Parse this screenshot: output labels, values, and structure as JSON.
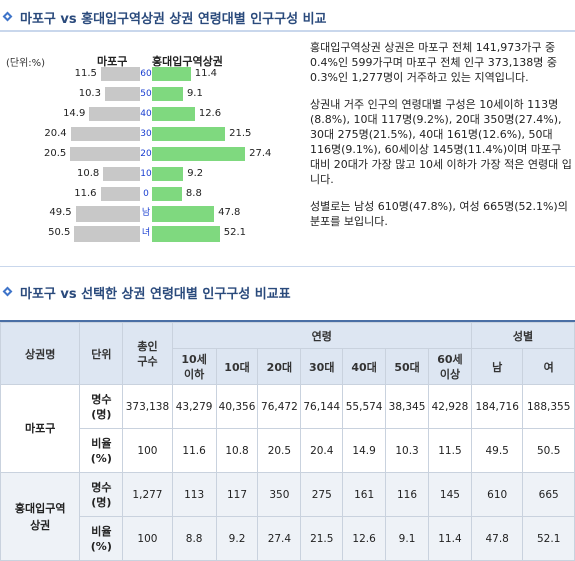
{
  "section1_title": "마포구 vs 홍대입구역상권 상권 연령대별 인구구성 비교",
  "section2_title": "마포구 vs 선택한 상권 연령대별 인구구성 비교표",
  "colors": {
    "title": "#2a4a7c",
    "left_bar": "#c8c8c8",
    "right_bar": "#7fd97f",
    "category_label": "#1a3fd1",
    "table_header": "#dde6f2"
  },
  "pyramid": {
    "unit_label": "(단위:%)",
    "left_header": "마포구",
    "right_header": "홍대입구역상권"
  },
  "chart_data": {
    "type": "bar",
    "categories": [
      "60",
      "50",
      "40",
      "30",
      "20",
      "10",
      "0",
      "남",
      "녀"
    ],
    "series": [
      {
        "name": "마포구",
        "values": [
          11.5,
          10.3,
          14.9,
          20.4,
          20.5,
          10.8,
          11.6,
          49.5,
          50.5
        ]
      },
      {
        "name": "홍대입구역상권",
        "values": [
          11.4,
          9.1,
          12.6,
          21.5,
          27.4,
          9.2,
          8.8,
          47.8,
          52.1
        ]
      }
    ],
    "left_labels": [
      "11.5",
      "10.3",
      "14.9",
      "20.4",
      "20.5",
      "10.8",
      "11.6",
      "49.5",
      "50.5"
    ],
    "right_labels": [
      "11.4",
      "9.1",
      "12.6",
      "21.5",
      "27.4",
      "9.2",
      "8.8",
      "47.8",
      "52.1"
    ]
  },
  "description": {
    "p1": "홍대입구역상권 상권은 마포구 전체 141,973가구 중 0.4%인 599가구며 마포구 전체 인구 373,138명 중 0.3%인 1,277명이 거주하고 있는 지역입니다.",
    "p2": "상권내 거주 인구의 연령대별 구성은 10세이하 113명(8.8%), 10대 117명(9.2%), 20대 350명(27.4%), 30대 275명(21.5%), 40대 161명(12.6%), 50대 116명(9.1%), 60세이상 145명(11.4%)이며 마포구 대비 20대가 가장 많고 10세 이하가 가장 적은 연령대 입니다.",
    "p3": "성별로는 남성 610명(47.8%), 여성 665명(52.1%)의 분포를 보입니다."
  },
  "table": {
    "headers": {
      "area": "상권명",
      "unit": "단위",
      "total": "총인\n구수",
      "age_group": "연령",
      "gender_group": "성별",
      "ages": [
        "10세\n이하",
        "10대",
        "20대",
        "30대",
        "40대",
        "50대",
        "60세\n이상"
      ],
      "genders": [
        "남",
        "여"
      ]
    },
    "rows": [
      {
        "area": "마포구",
        "unit_count": "명수\n(명)",
        "unit_ratio": "비율\n(%)",
        "counts": [
          "373,138",
          "43,279",
          "40,356",
          "76,472",
          "76,144",
          "55,574",
          "38,345",
          "42,928",
          "184,716",
          "188,355"
        ],
        "ratios": [
          "100",
          "11.6",
          "10.8",
          "20.5",
          "20.4",
          "14.9",
          "10.3",
          "11.5",
          "49.5",
          "50.5"
        ]
      },
      {
        "area": "홍대입구역\n상권",
        "unit_count": "명수\n(명)",
        "unit_ratio": "비율\n(%)",
        "counts": [
          "1,277",
          "113",
          "117",
          "350",
          "275",
          "161",
          "116",
          "145",
          "610",
          "665"
        ],
        "ratios": [
          "100",
          "8.8",
          "9.2",
          "27.4",
          "21.5",
          "12.6",
          "9.1",
          "11.4",
          "47.8",
          "52.1"
        ]
      }
    ]
  }
}
